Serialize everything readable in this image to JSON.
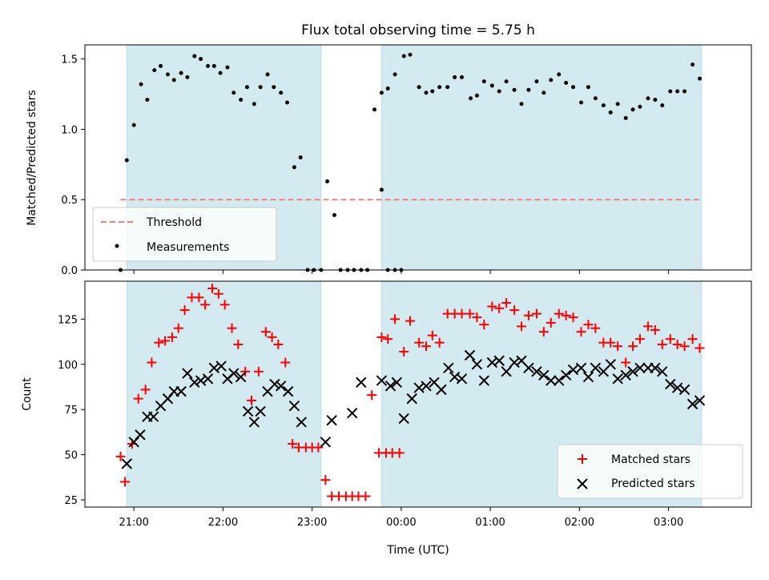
{
  "figure": {
    "title": "Flux total observing time = 5.75 h",
    "xlabel": "Time (UTC)",
    "colors": {
      "shade": "#d3eaf0",
      "threshold": "#f08080",
      "matched": "#ff0000",
      "predicted": "#000000",
      "measure": "#000000"
    }
  },
  "chart_data": [
    {
      "type": "scatter",
      "ylabel": "Matched/Predicted stars",
      "xlim": [
        -3.55,
        3.93
      ],
      "ylim": [
        0,
        1.6
      ],
      "yticks": [
        0,
        0.5,
        1.0,
        1.5
      ],
      "ytick_labels": [
        "0.0",
        "0.5",
        "1.0",
        "1.5"
      ],
      "xticks": [
        -3,
        -2,
        -1,
        0,
        1,
        2,
        3
      ],
      "xtick_labels": [
        "",
        "",
        "",
        "",
        "",
        "",
        ""
      ],
      "shaded_spans": [
        [
          -3.08,
          -0.9
        ],
        [
          -0.22,
          3.37
        ]
      ],
      "threshold": {
        "name": "Threshold",
        "y": 0.5,
        "x_range": [
          -3.15,
          3.37
        ]
      },
      "legend": [
        "Threshold",
        "Measurements"
      ],
      "legend_position": "lower-left",
      "series": [
        {
          "name": "Measurements",
          "marker": "dot",
          "points": [
            [
              -3.15,
              0.0
            ],
            [
              -3.08,
              0.78
            ],
            [
              -3.0,
              1.03
            ],
            [
              -2.92,
              1.32
            ],
            [
              -2.85,
              1.21
            ],
            [
              -2.77,
              1.42
            ],
            [
              -2.7,
              1.45
            ],
            [
              -2.62,
              1.39
            ],
            [
              -2.55,
              1.35
            ],
            [
              -2.47,
              1.4
            ],
            [
              -2.4,
              1.37
            ],
            [
              -2.32,
              1.52
            ],
            [
              -2.25,
              1.5
            ],
            [
              -2.17,
              1.45
            ],
            [
              -2.1,
              1.45
            ],
            [
              -2.03,
              1.4
            ],
            [
              -1.95,
              1.44
            ],
            [
              -1.88,
              1.26
            ],
            [
              -1.8,
              1.21
            ],
            [
              -1.73,
              1.3
            ],
            [
              -1.65,
              1.18
            ],
            [
              -1.58,
              1.3
            ],
            [
              -1.5,
              1.39
            ],
            [
              -1.43,
              1.3
            ],
            [
              -1.35,
              1.26
            ],
            [
              -1.28,
              1.19
            ],
            [
              -1.2,
              0.73
            ],
            [
              -1.13,
              0.8
            ],
            [
              -1.05,
              0.0
            ],
            [
              -0.98,
              0.0
            ],
            [
              -0.9,
              0.0
            ],
            [
              -0.83,
              0.63
            ],
            [
              -0.75,
              0.39
            ],
            [
              -0.68,
              0.0
            ],
            [
              -0.6,
              0.0
            ],
            [
              -0.53,
              0.0
            ],
            [
              -0.45,
              0.0
            ],
            [
              -0.38,
              0.0
            ],
            [
              -0.3,
              1.14
            ],
            [
              -0.22,
              0.57
            ],
            [
              -0.15,
              0.0
            ],
            [
              -0.07,
              0.0
            ],
            [
              0.0,
              0.0
            ],
            [
              -0.22,
              1.26
            ],
            [
              -0.15,
              1.29
            ],
            [
              -0.07,
              1.39
            ],
            [
              0.03,
              1.52
            ],
            [
              0.1,
              1.53
            ],
            [
              0.2,
              1.3
            ],
            [
              0.28,
              1.26
            ],
            [
              0.35,
              1.27
            ],
            [
              0.43,
              1.3
            ],
            [
              0.52,
              1.3
            ],
            [
              0.6,
              1.37
            ],
            [
              0.68,
              1.37
            ],
            [
              0.78,
              1.22
            ],
            [
              0.85,
              1.24
            ],
            [
              0.93,
              1.34
            ],
            [
              1.02,
              1.31
            ],
            [
              1.1,
              1.27
            ],
            [
              1.18,
              1.34
            ],
            [
              1.27,
              1.28
            ],
            [
              1.35,
              1.18
            ],
            [
              1.43,
              1.28
            ],
            [
              1.52,
              1.34
            ],
            [
              1.6,
              1.26
            ],
            [
              1.68,
              1.35
            ],
            [
              1.77,
              1.39
            ],
            [
              1.85,
              1.33
            ],
            [
              1.93,
              1.3
            ],
            [
              2.02,
              1.19
            ],
            [
              2.1,
              1.3
            ],
            [
              2.18,
              1.22
            ],
            [
              2.27,
              1.17
            ],
            [
              2.35,
              1.12
            ],
            [
              2.43,
              1.18
            ],
            [
              2.52,
              1.08
            ],
            [
              2.6,
              1.14
            ],
            [
              2.68,
              1.16
            ],
            [
              2.77,
              1.22
            ],
            [
              2.85,
              1.21
            ],
            [
              2.93,
              1.17
            ],
            [
              3.02,
              1.27
            ],
            [
              3.1,
              1.27
            ],
            [
              3.18,
              1.27
            ],
            [
              3.27,
              1.46
            ],
            [
              3.35,
              1.36
            ]
          ]
        }
      ]
    },
    {
      "type": "scatter",
      "ylabel": "Count",
      "xlim": [
        -3.55,
        3.93
      ],
      "ylim": [
        21,
        146
      ],
      "yticks": [
        25,
        50,
        75,
        100,
        125
      ],
      "ytick_labels": [
        "25",
        "50",
        "75",
        "100",
        "125"
      ],
      "xticks": [
        -3,
        -2,
        -1,
        0,
        1,
        2,
        3
      ],
      "xtick_labels": [
        "21:00",
        "22:00",
        "23:00",
        "00:00",
        "01:00",
        "02:00",
        "03:00"
      ],
      "shaded_spans": [
        [
          -3.08,
          -0.9
        ],
        [
          -0.22,
          3.37
        ]
      ],
      "legend": [
        "Matched stars",
        "Predicted stars"
      ],
      "legend_position": "lower-right",
      "series": [
        {
          "name": "Matched stars",
          "marker": "plus",
          "points": [
            [
              -3.15,
              49
            ],
            [
              -3.1,
              35
            ],
            [
              -3.02,
              56
            ],
            [
              -2.95,
              81
            ],
            [
              -2.87,
              86
            ],
            [
              -2.8,
              101
            ],
            [
              -2.72,
              112
            ],
            [
              -2.65,
              113
            ],
            [
              -2.57,
              115
            ],
            [
              -2.5,
              120
            ],
            [
              -2.43,
              130
            ],
            [
              -2.35,
              137
            ],
            [
              -2.27,
              137
            ],
            [
              -2.2,
              133
            ],
            [
              -2.12,
              142
            ],
            [
              -2.05,
              139
            ],
            [
              -1.98,
              133
            ],
            [
              -1.9,
              120
            ],
            [
              -1.83,
              111
            ],
            [
              -1.75,
              96
            ],
            [
              -1.68,
              80
            ],
            [
              -1.6,
              96
            ],
            [
              -1.52,
              118
            ],
            [
              -1.45,
              115
            ],
            [
              -1.38,
              111
            ],
            [
              -1.3,
              101
            ],
            [
              -1.22,
              56
            ],
            [
              -1.15,
              54
            ],
            [
              -1.07,
              54
            ],
            [
              -1.0,
              54
            ],
            [
              -0.93,
              54
            ],
            [
              -0.85,
              36
            ],
            [
              -0.78,
              27
            ],
            [
              -0.7,
              27
            ],
            [
              -0.62,
              27
            ],
            [
              -0.55,
              27
            ],
            [
              -0.48,
              27
            ],
            [
              -0.4,
              27
            ],
            [
              -0.33,
              83
            ],
            [
              -0.25,
              51
            ],
            [
              -0.17,
              51
            ],
            [
              -0.1,
              51
            ],
            [
              -0.02,
              51
            ],
            [
              -0.22,
              115
            ],
            [
              -0.15,
              114
            ],
            [
              -0.07,
              125
            ],
            [
              0.03,
              107
            ],
            [
              0.1,
              124
            ],
            [
              0.2,
              112
            ],
            [
              0.28,
              110
            ],
            [
              0.35,
              116
            ],
            [
              0.43,
              112
            ],
            [
              0.52,
              128
            ],
            [
              0.6,
              128
            ],
            [
              0.68,
              128
            ],
            [
              0.77,
              128
            ],
            [
              0.85,
              126
            ],
            [
              0.93,
              122
            ],
            [
              1.02,
              132
            ],
            [
              1.1,
              131
            ],
            [
              1.18,
              134
            ],
            [
              1.27,
              130
            ],
            [
              1.35,
              121
            ],
            [
              1.43,
              127
            ],
            [
              1.52,
              128
            ],
            [
              1.6,
              118
            ],
            [
              1.68,
              123
            ],
            [
              1.77,
              128
            ],
            [
              1.85,
              127
            ],
            [
              1.93,
              126
            ],
            [
              2.02,
              118
            ],
            [
              2.1,
              122
            ],
            [
              2.18,
              120
            ],
            [
              2.27,
              112
            ],
            [
              2.35,
              112
            ],
            [
              2.43,
              110
            ],
            [
              2.52,
              101
            ],
            [
              2.6,
              110
            ],
            [
              2.68,
              114
            ],
            [
              2.77,
              121
            ],
            [
              2.85,
              119
            ],
            [
              2.93,
              111
            ],
            [
              3.02,
              114
            ],
            [
              3.1,
              111
            ],
            [
              3.18,
              110
            ],
            [
              3.27,
              114
            ],
            [
              3.35,
              109
            ]
          ]
        },
        {
          "name": "Predicted stars",
          "marker": "x",
          "points": [
            [
              -3.08,
              45
            ],
            [
              -3.0,
              57
            ],
            [
              -2.93,
              61
            ],
            [
              -2.85,
              71
            ],
            [
              -2.78,
              71
            ],
            [
              -2.7,
              77
            ],
            [
              -2.62,
              81
            ],
            [
              -2.55,
              85
            ],
            [
              -2.47,
              85
            ],
            [
              -2.4,
              95
            ],
            [
              -2.32,
              90
            ],
            [
              -2.25,
              91
            ],
            [
              -2.17,
              92
            ],
            [
              -2.1,
              98
            ],
            [
              -2.02,
              99
            ],
            [
              -1.95,
              92
            ],
            [
              -1.88,
              95
            ],
            [
              -1.8,
              93
            ],
            [
              -1.72,
              74
            ],
            [
              -1.65,
              68
            ],
            [
              -1.58,
              74
            ],
            [
              -1.5,
              85
            ],
            [
              -1.42,
              89
            ],
            [
              -1.35,
              88
            ],
            [
              -1.27,
              85
            ],
            [
              -1.2,
              77
            ],
            [
              -1.12,
              68
            ],
            [
              -0.85,
              57
            ],
            [
              -0.78,
              69
            ],
            [
              -0.55,
              73
            ],
            [
              -0.45,
              90
            ],
            [
              -0.22,
              91
            ],
            [
              -0.12,
              88
            ],
            [
              -0.05,
              90
            ],
            [
              0.03,
              70
            ],
            [
              0.12,
              81
            ],
            [
              0.2,
              87
            ],
            [
              0.28,
              88
            ],
            [
              0.37,
              90
            ],
            [
              0.45,
              86
            ],
            [
              0.53,
              98
            ],
            [
              0.6,
              93
            ],
            [
              0.68,
              92
            ],
            [
              0.77,
              105
            ],
            [
              0.85,
              100
            ],
            [
              0.93,
              91
            ],
            [
              1.02,
              101
            ],
            [
              1.1,
              102
            ],
            [
              1.18,
              96
            ],
            [
              1.27,
              101
            ],
            [
              1.35,
              102
            ],
            [
              1.43,
              98
            ],
            [
              1.52,
              96
            ],
            [
              1.6,
              94
            ],
            [
              1.68,
              91
            ],
            [
              1.77,
              91
            ],
            [
              1.85,
              94
            ],
            [
              1.93,
              97
            ],
            [
              2.02,
              98
            ],
            [
              2.1,
              93
            ],
            [
              2.18,
              98
            ],
            [
              2.27,
              96
            ],
            [
              2.35,
              100
            ],
            [
              2.43,
              92
            ],
            [
              2.52,
              94
            ],
            [
              2.6,
              96
            ],
            [
              2.68,
              98
            ],
            [
              2.77,
              98
            ],
            [
              2.85,
              98
            ],
            [
              2.93,
              96
            ],
            [
              3.02,
              89
            ],
            [
              3.1,
              87
            ],
            [
              3.18,
              86
            ],
            [
              3.27,
              78
            ],
            [
              3.35,
              80
            ]
          ]
        }
      ]
    }
  ]
}
